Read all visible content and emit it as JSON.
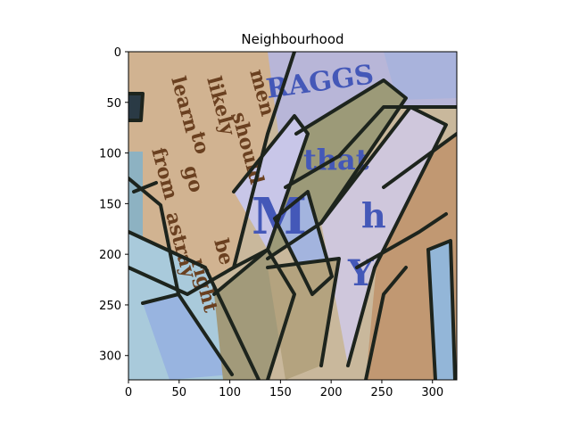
{
  "chart_data": {
    "type": "heatmap",
    "title": "Neighbourhood",
    "xlabel": "",
    "ylabel": "",
    "image_size": [
      324,
      324
    ],
    "xlim": [
      0,
      324
    ],
    "ylim": [
      324,
      0
    ],
    "xticks": [
      0,
      50,
      100,
      150,
      200,
      250,
      300
    ],
    "yticks": [
      0,
      50,
      100,
      150,
      200,
      250,
      300
    ],
    "xtick_labels": [
      "0",
      "50",
      "100",
      "150",
      "200",
      "250",
      "300"
    ],
    "ytick_labels": [
      "0",
      "50",
      "100",
      "150",
      "200",
      "250",
      "300"
    ],
    "grid": false,
    "legend": "none",
    "image_description_words": [
      "men",
      "should",
      "be",
      "right",
      "likely",
      "to",
      "go",
      "astray",
      "learn",
      "from",
      "RAGGS",
      "that",
      "M",
      "h",
      "Y",
      "ripped newspaper collage with dark outlines"
    ],
    "colors": {
      "paper_tan": "#cdb08e",
      "paper_cream": "#e3d8c6",
      "lavender": "#b9bbe0",
      "light_blue": "#a9c9dc",
      "ink_brown": "#6a4020",
      "ink_blue": "#4458b8",
      "outline": "#1d241d",
      "olive": "#8f8a66"
    }
  }
}
